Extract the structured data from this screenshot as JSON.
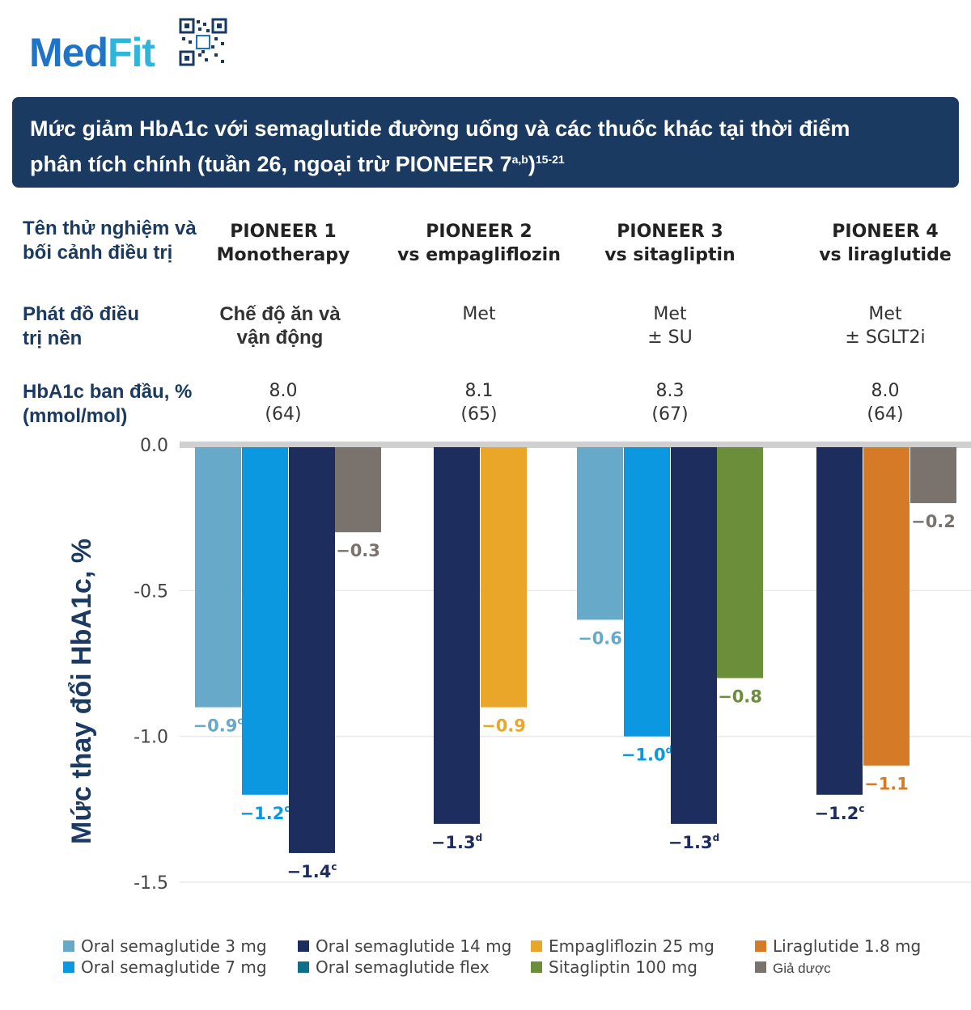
{
  "logo": {
    "part1": "Med",
    "part2": "Fit",
    "qr_label": "QR code"
  },
  "title": {
    "line1": "Mức giảm HbA1c với semaglutide đường uống và các thuốc khác tại thời điểm",
    "line2": "phân tích chính (tuần 26, ngoại trừ PIONEER 7",
    "sup1": "a,b",
    "close": ")",
    "sup2": "15-21"
  },
  "rows": {
    "trial_label": [
      "Tên thử nghiệm và",
      "bối cảnh điều trị"
    ],
    "background_label": [
      "Phát đồ điều",
      "trị nền"
    ],
    "baseline_label": [
      "HbA1c ban đầu, %",
      "(mmol/mol)"
    ]
  },
  "columns": [
    {
      "trial": "PIONEER 1",
      "setting": "Monotherapy",
      "background": [
        "Chế độ ăn và",
        "vận động"
      ],
      "baseline": [
        "8.0",
        "(64)"
      ]
    },
    {
      "trial": "PIONEER 2",
      "setting": "vs empagliflozin",
      "background": [
        "Met",
        ""
      ],
      "baseline": [
        "8.1",
        "(65)"
      ]
    },
    {
      "trial": "PIONEER 3",
      "setting": "vs sitagliptin",
      "background": [
        "Met",
        "± SU"
      ],
      "baseline": [
        "8.3",
        "(67)"
      ]
    },
    {
      "trial": "PIONEER 4",
      "setting": "vs liraglutide",
      "background": [
        "Met",
        "± SGLT2i"
      ],
      "baseline": [
        "8.0",
        "(64)"
      ]
    }
  ],
  "colors": {
    "sema3": "#67a9c9",
    "sema7": "#0b98e0",
    "sema14": "#1c2d5e",
    "flex": "#0e6f8a",
    "empa": "#e9a629",
    "sita": "#6a8e3a",
    "lira": "#d57b27",
    "placebo": "#7a726c"
  },
  "chart_data": {
    "type": "bar",
    "ylabel": "Mức thay đổi HbA1c, %",
    "ylim": [
      -1.5,
      0.0
    ],
    "yticks": [
      0.0,
      -0.5,
      -1.0,
      -1.5
    ],
    "ytick_labels": [
      "0.0",
      "-0.5",
      "-1.0",
      "-1.5"
    ],
    "groups": [
      {
        "trial": "PIONEER 1",
        "bars": [
          {
            "series": "Oral semaglutide 3 mg",
            "color_key": "sema3",
            "value": -0.9,
            "label": "−0.9",
            "sup": "c"
          },
          {
            "series": "Oral semaglutide 7 mg",
            "color_key": "sema7",
            "value": -1.2,
            "label": "−1.2",
            "sup": "c"
          },
          {
            "series": "Oral semaglutide 14 mg",
            "color_key": "sema14",
            "value": -1.4,
            "label": "−1.4",
            "sup": "c"
          },
          {
            "series": "Giả dược",
            "color_key": "placebo",
            "value": -0.3,
            "label": "−0.3",
            "sup": ""
          }
        ]
      },
      {
        "trial": "PIONEER 2",
        "bars": [
          {
            "series": "Oral semaglutide 14 mg",
            "color_key": "sema14",
            "value": -1.3,
            "label": "−1.3",
            "sup": "d"
          },
          {
            "series": "Empagliflozin 25 mg",
            "color_key": "empa",
            "value": -0.9,
            "label": "−0.9",
            "sup": ""
          }
        ]
      },
      {
        "trial": "PIONEER 3",
        "bars": [
          {
            "series": "Oral semaglutide 3 mg",
            "color_key": "sema3",
            "value": -0.6,
            "label": "−0.6",
            "sup": ""
          },
          {
            "series": "Oral semaglutide 7 mg",
            "color_key": "sema7",
            "value": -1.0,
            "label": "−1.0",
            "sup": "d"
          },
          {
            "series": "Oral semaglutide 14 mg",
            "color_key": "sema14",
            "value": -1.3,
            "label": "−1.3",
            "sup": "d"
          },
          {
            "series": "Sitagliptin 100 mg",
            "color_key": "sita",
            "value": -0.8,
            "label": "−0.8",
            "sup": ""
          }
        ]
      },
      {
        "trial": "PIONEER 4",
        "bars": [
          {
            "series": "Oral semaglutide 14 mg",
            "color_key": "sema14",
            "value": -1.2,
            "label": "−1.2",
            "sup": "c"
          },
          {
            "series": "Liraglutide 1.8 mg",
            "color_key": "lira",
            "value": -1.1,
            "label": "−1.1",
            "sup": ""
          },
          {
            "series": "Giả dược",
            "color_key": "placebo",
            "value": -0.2,
            "label": "−0.2",
            "sup": ""
          }
        ]
      }
    ],
    "legend": [
      {
        "label": "Oral semaglutide 3 mg",
        "color_key": "sema3"
      },
      {
        "label": "Oral semaglutide 7 mg",
        "color_key": "sema7"
      },
      {
        "label": "Oral semaglutide 14 mg",
        "color_key": "sema14"
      },
      {
        "label": "Oral semaglutide flex",
        "color_key": "flex"
      },
      {
        "label": "Empagliflozin 25 mg",
        "color_key": "empa"
      },
      {
        "label": "Sitagliptin 100 mg",
        "color_key": "sita"
      },
      {
        "label": "Liraglutide 1.8 mg",
        "color_key": "lira"
      },
      {
        "label": "Giả dược",
        "color_key": "placebo"
      }
    ]
  }
}
